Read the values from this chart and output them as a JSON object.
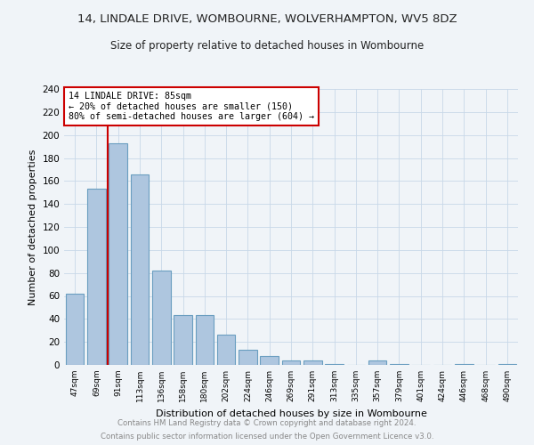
{
  "title": "14, LINDALE DRIVE, WOMBOURNE, WOLVERHAMPTON, WV5 8DZ",
  "subtitle": "Size of property relative to detached houses in Wombourne",
  "xlabel": "Distribution of detached houses by size in Wombourne",
  "ylabel": "Number of detached properties",
  "categories": [
    "47sqm",
    "69sqm",
    "91sqm",
    "113sqm",
    "136sqm",
    "158sqm",
    "180sqm",
    "202sqm",
    "224sqm",
    "246sqm",
    "269sqm",
    "291sqm",
    "313sqm",
    "335sqm",
    "357sqm",
    "379sqm",
    "401sqm",
    "424sqm",
    "446sqm",
    "468sqm",
    "490sqm"
  ],
  "values": [
    62,
    153,
    193,
    166,
    82,
    43,
    43,
    26,
    13,
    8,
    4,
    4,
    1,
    0,
    4,
    1,
    0,
    0,
    1,
    0,
    1
  ],
  "bar_color": "#aec6df",
  "bar_edge_color": "#6a9ec0",
  "vline_x": 1.5,
  "vline_color": "#cc0000",
  "annotation_line1": "14 LINDALE DRIVE: 85sqm",
  "annotation_line2": "← 20% of detached houses are smaller (150)",
  "annotation_line3": "80% of semi-detached houses are larger (604) →",
  "annotation_box_edge": "#cc0000",
  "ylim": [
    0,
    240
  ],
  "yticks": [
    0,
    20,
    40,
    60,
    80,
    100,
    120,
    140,
    160,
    180,
    200,
    220,
    240
  ],
  "footnote1": "Contains HM Land Registry data © Crown copyright and database right 2024.",
  "footnote2": "Contains public sector information licensed under the Open Government Licence v3.0.",
  "background_color": "#f0f4f8",
  "grid_color": "#c8d8e8"
}
